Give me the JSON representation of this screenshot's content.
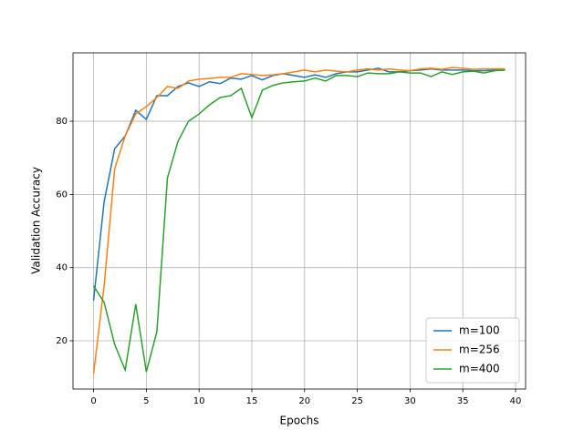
{
  "chart_data": {
    "type": "line",
    "xlabel": "Epochs",
    "ylabel": "Validation Accuracy",
    "x": [
      0,
      1,
      2,
      3,
      4,
      5,
      6,
      7,
      8,
      9,
      10,
      11,
      12,
      13,
      14,
      15,
      16,
      17,
      18,
      19,
      20,
      21,
      22,
      23,
      24,
      25,
      26,
      27,
      28,
      29,
      30,
      31,
      32,
      33,
      34,
      35,
      36,
      37,
      38,
      39
    ],
    "series": [
      {
        "name": "m=100",
        "color": "#1f77b4",
        "values": [
          31,
          58,
          72.5,
          76,
          83,
          80.5,
          87,
          87,
          89.5,
          90.5,
          89.5,
          90.8,
          90.3,
          91.8,
          91.5,
          92.5,
          91.3,
          92.5,
          93,
          92.5,
          92,
          92.7,
          92,
          93,
          93.5,
          93.5,
          94,
          94.5,
          93.5,
          93.5,
          93.8,
          94,
          94.3,
          94,
          94,
          94,
          93.8,
          93.8,
          94,
          94
        ]
      },
      {
        "name": "m=256",
        "color": "#ff7f0e",
        "values": [
          11,
          35,
          67,
          76,
          82,
          84,
          86.5,
          89.5,
          89,
          91,
          91.5,
          91.7,
          92,
          92,
          93,
          92.8,
          92.5,
          92.7,
          93,
          93.5,
          94,
          93.5,
          94,
          93.7,
          93.5,
          94,
          94.3,
          94,
          94.3,
          94,
          93.8,
          94.3,
          94.5,
          94.2,
          94.7,
          94.5,
          94.2,
          94.3,
          94.3,
          94.3
        ]
      },
      {
        "name": "m=400",
        "color": "#2ca02c",
        "values": [
          35,
          30.5,
          19,
          12,
          30,
          11.5,
          22.5,
          64.5,
          74.5,
          80,
          82,
          84.5,
          86.5,
          87,
          89,
          81,
          88.5,
          89.8,
          90.5,
          90.8,
          91,
          91.8,
          91,
          92.5,
          92.5,
          92.2,
          93.2,
          93,
          93,
          93.5,
          93.2,
          93.2,
          92.2,
          93.5,
          92.8,
          93.5,
          93.7,
          93.2,
          93.8,
          94
        ]
      }
    ],
    "xlim": [
      -1.95,
      40.95
    ],
    "ylim": [
      6.8,
      98.7
    ],
    "xticks": [
      0,
      5,
      10,
      15,
      20,
      25,
      30,
      35,
      40
    ],
    "yticks": [
      20,
      40,
      60,
      80
    ],
    "grid": true,
    "legend": "lower right"
  }
}
